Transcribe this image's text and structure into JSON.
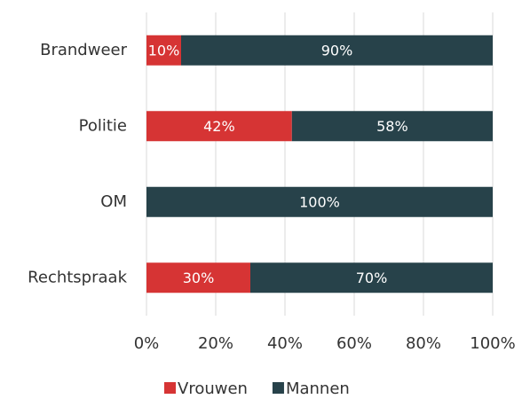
{
  "chart_data": {
    "type": "stacked_bar_horizontal",
    "categories": [
      "Brandweer",
      "Politie",
      "OM",
      "Rechtspraak"
    ],
    "series": [
      {
        "name": "Vrouwen",
        "color": "#d63434",
        "values": [
          10,
          42,
          0,
          30
        ],
        "value_labels": [
          "10%",
          "42%",
          null,
          "30%"
        ]
      },
      {
        "name": "Mannen",
        "color": "#27424a",
        "values": [
          90,
          58,
          100,
          70
        ],
        "value_labels": [
          "90%",
          "58%",
          "100%",
          "70%"
        ]
      }
    ],
    "xlim": [
      0,
      100
    ],
    "xticks": [
      {
        "value": 0,
        "label": "0%"
      },
      {
        "value": 20,
        "label": "20%"
      },
      {
        "value": 40,
        "label": "40%"
      },
      {
        "value": 60,
        "label": "60%"
      },
      {
        "value": 80,
        "label": "80%"
      },
      {
        "value": 100,
        "label": "100%"
      }
    ],
    "grid": true,
    "legend": "bottom"
  }
}
